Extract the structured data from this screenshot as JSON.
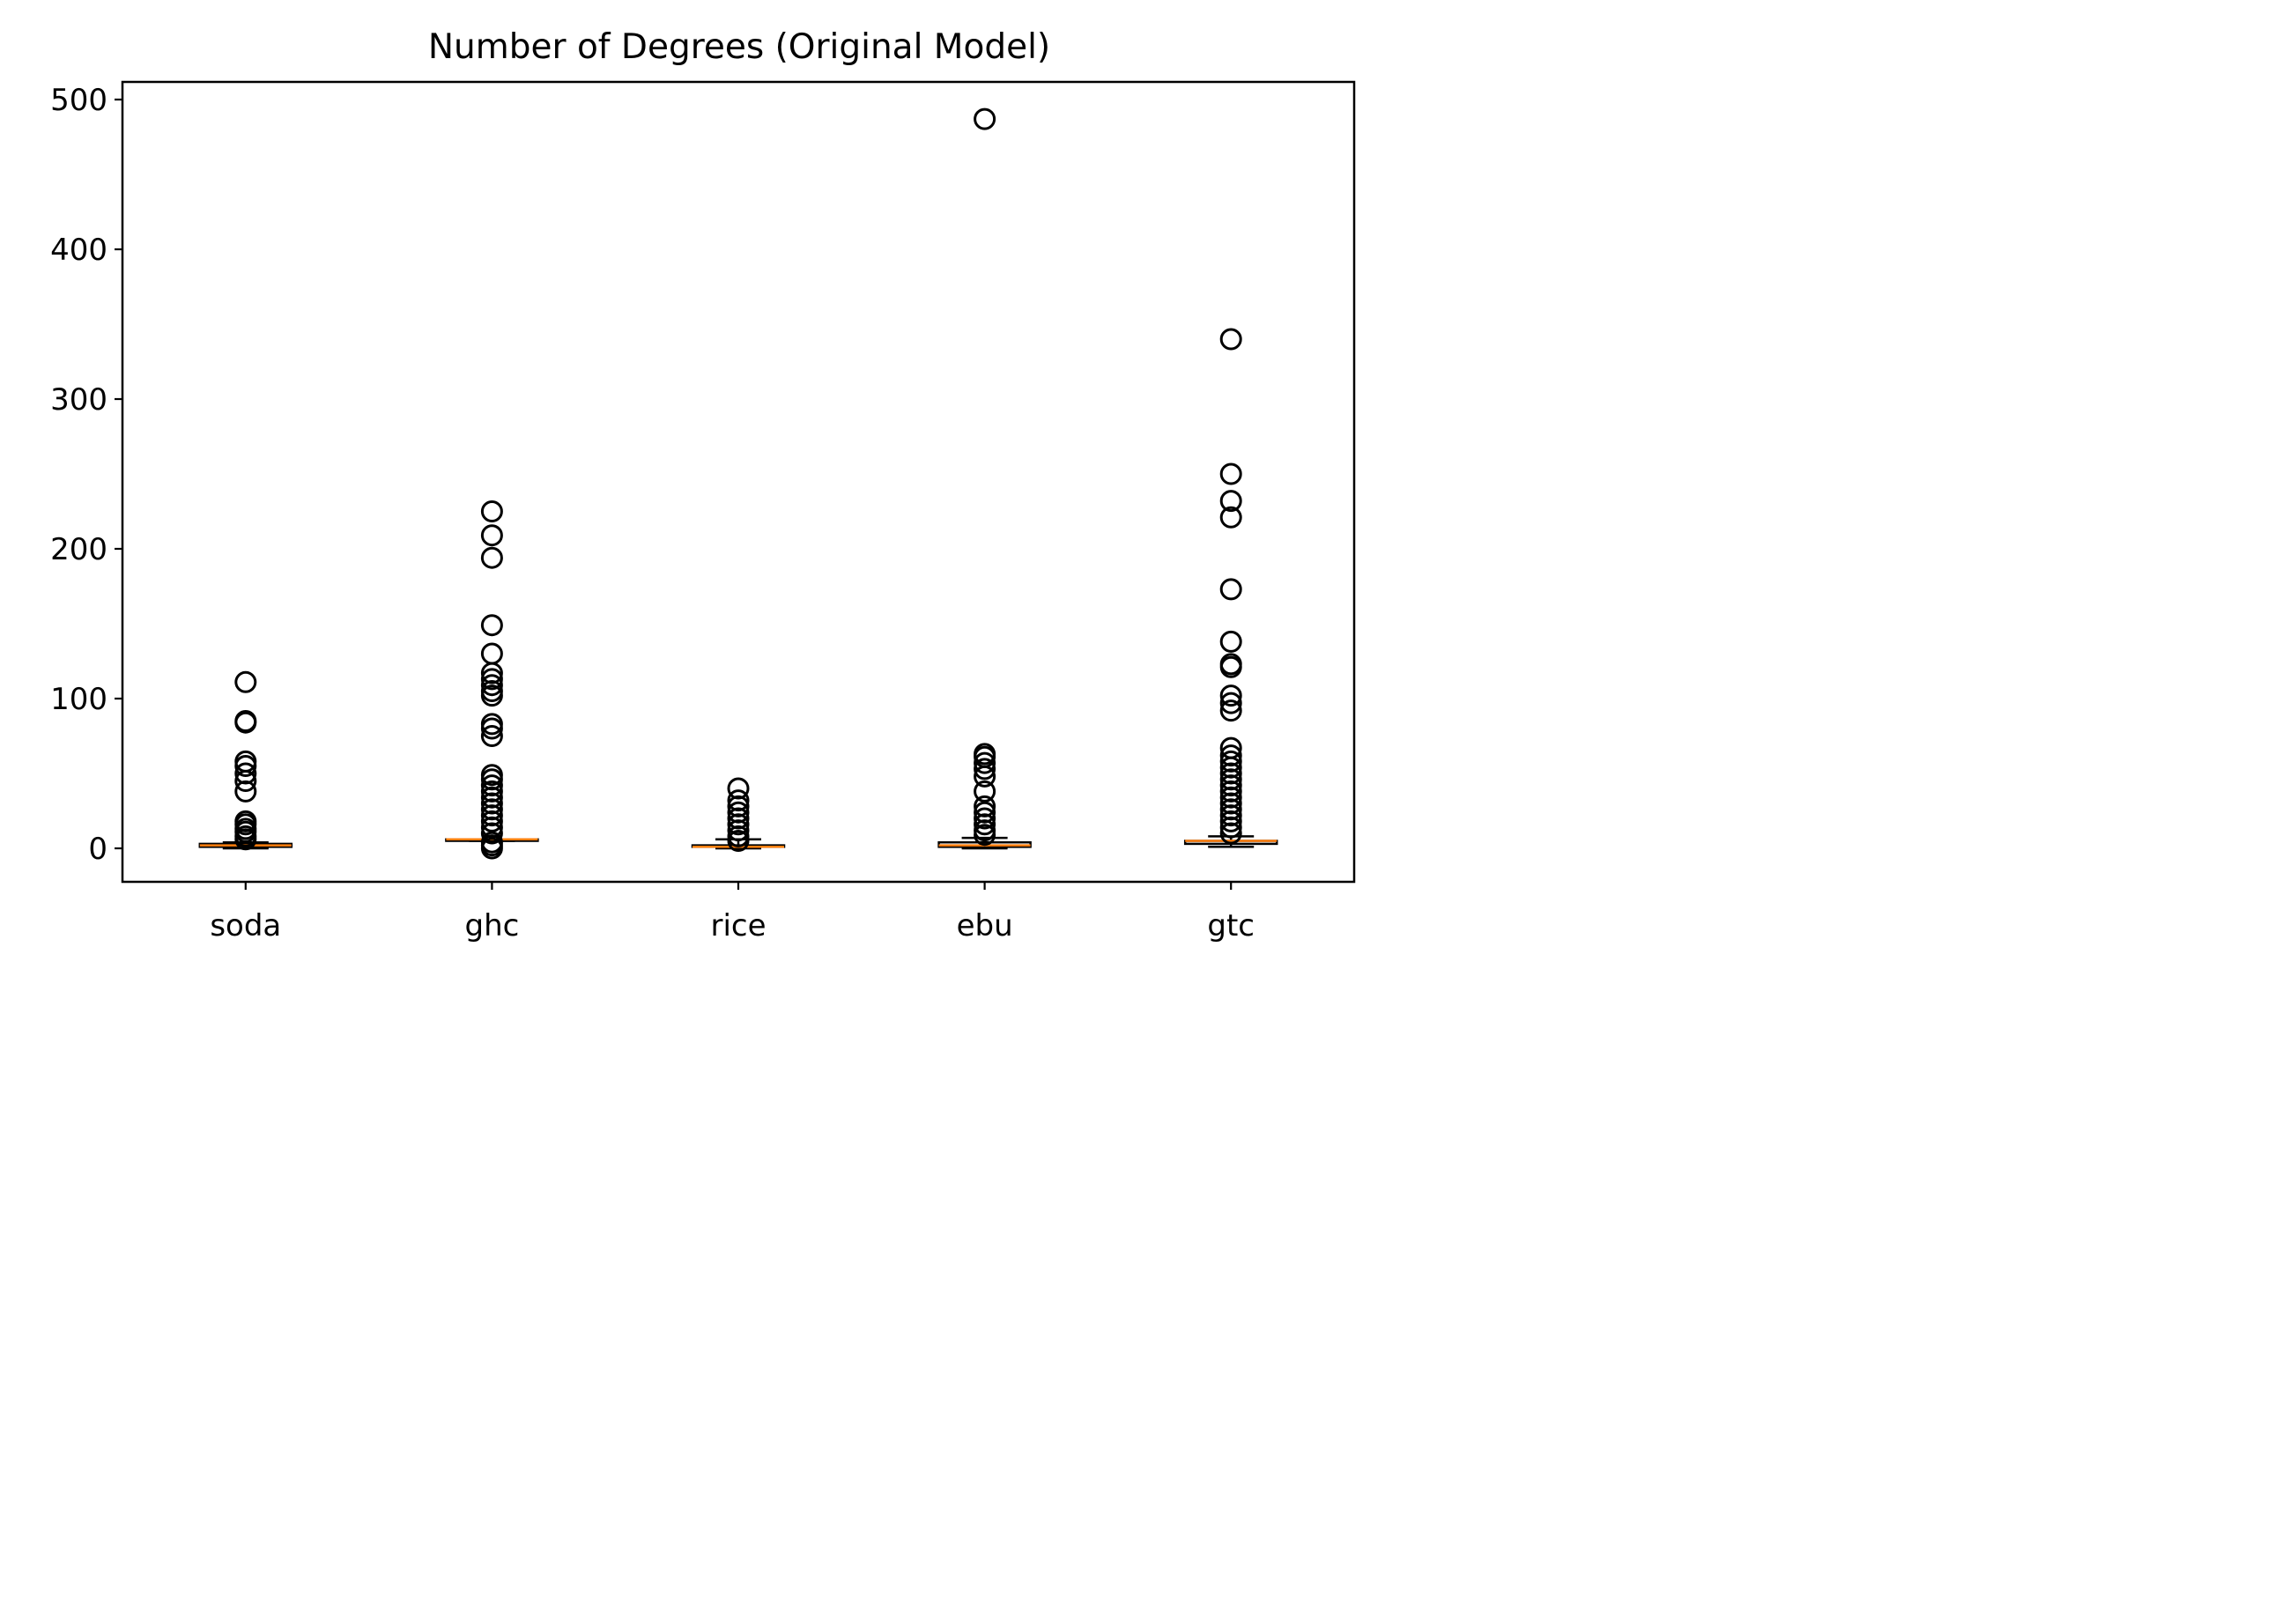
{
  "chart_data": {
    "type": "box",
    "title": "Number of Degrees (Original Model)",
    "xlabel": "",
    "ylabel": "",
    "ylim": [
      -22,
      512
    ],
    "yticks": [
      0,
      100,
      200,
      300,
      400,
      500
    ],
    "grid": false,
    "colors": {
      "median": "#ff7f0e",
      "box": "#000000",
      "flier": "#000000"
    },
    "categories": [
      "soda",
      "ghc",
      "rice",
      "ebu",
      "gtc"
    ],
    "boxes": [
      {
        "name": "soda",
        "whislo": 0,
        "q1": 1,
        "median": 2,
        "q3": 3,
        "whishi": 4,
        "fliers": [
          6,
          8,
          11,
          13,
          16,
          18,
          38,
          45,
          50,
          55,
          58,
          84,
          85,
          111
        ]
      },
      {
        "name": "ghc",
        "whislo": 5,
        "q1": 5,
        "median": 6,
        "q3": 6,
        "whishi": 6,
        "fliers": [
          0,
          2,
          4,
          10,
          14,
          18,
          22,
          26,
          30,
          34,
          38,
          42,
          46,
          49,
          75,
          80,
          83,
          102,
          105,
          109,
          113,
          117,
          130,
          149,
          194,
          209,
          225
        ]
      },
      {
        "name": "rice",
        "whislo": 0,
        "q1": 1,
        "median": 1,
        "q3": 2,
        "whishi": 6,
        "fliers": [
          5,
          8,
          12,
          16,
          20,
          24,
          28,
          32,
          40
        ]
      },
      {
        "name": "ebu",
        "whislo": 0,
        "q1": 1,
        "median": 2,
        "q3": 4,
        "whishi": 7,
        "fliers": [
          9,
          12,
          16,
          20,
          24,
          28,
          38,
          48,
          53,
          57,
          61,
          63,
          487
        ]
      },
      {
        "name": "gtc",
        "whislo": 1,
        "q1": 3,
        "median": 5,
        "q3": 5,
        "whishi": 8,
        "fliers": [
          10,
          14,
          18,
          22,
          26,
          30,
          34,
          38,
          42,
          46,
          50,
          54,
          58,
          62,
          67,
          92,
          97,
          102,
          121,
          123,
          138,
          173,
          221,
          232,
          250,
          340
        ]
      }
    ]
  }
}
